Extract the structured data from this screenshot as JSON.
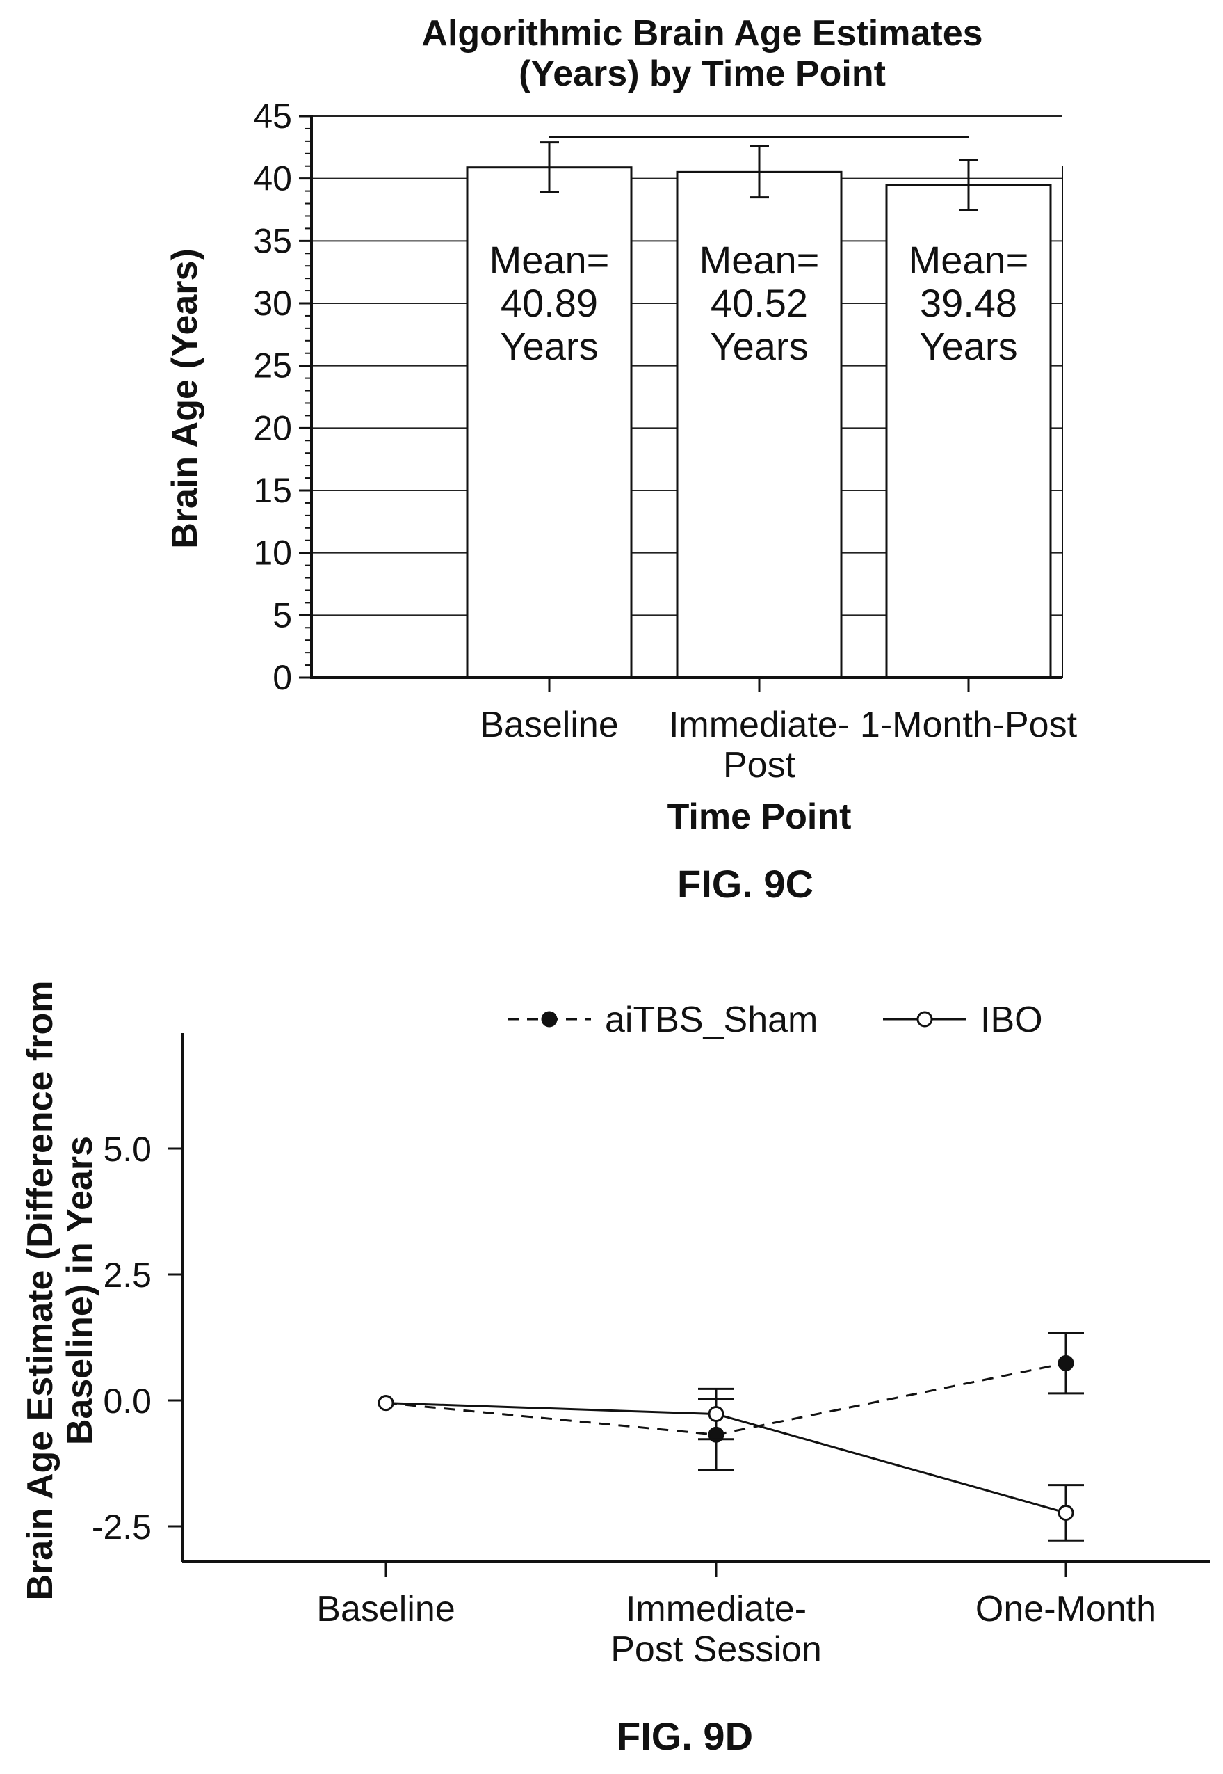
{
  "chart_data": [
    {
      "figure_label": "FIG. 9C",
      "type": "bar",
      "title_lines": [
        "Algorithmic Brain Age Estimates",
        "(Years) by Time Point"
      ],
      "xlabel": "Time Point",
      "ylabel": "Brain Age (Years)",
      "ylim": [
        0,
        45
      ],
      "yticks": [
        0,
        5,
        10,
        15,
        20,
        25,
        30,
        35,
        40,
        45
      ],
      "grid": true,
      "categories": [
        {
          "lines": [
            "Baseline"
          ]
        },
        {
          "lines": [
            "Immediate-",
            "Post"
          ]
        },
        {
          "lines": [
            "1-Month-Post"
          ]
        }
      ],
      "values": [
        40.89,
        40.52,
        39.48
      ],
      "error_bars": [
        [
          38.9,
          42.9
        ],
        [
          38.5,
          42.6
        ],
        [
          37.5,
          41.5
        ]
      ],
      "bar_labels": [
        [
          "Mean=",
          "40.89",
          "Years"
        ],
        [
          "Mean=",
          "40.52",
          "Years"
        ],
        [
          "Mean=",
          "39.48",
          "Years"
        ]
      ],
      "bracket": {
        "from": 0,
        "to": 2,
        "y": 43.3
      }
    },
    {
      "figure_label": "FIG. 9D",
      "type": "line",
      "ylabel_lines": [
        "Brain Age Estimate (Difference from",
        "Baseline) in Years"
      ],
      "xlabel": "",
      "ylim": [
        -3.2,
        7.0
      ],
      "yticks": [
        {
          "value": -2.5,
          "label": "-2.5"
        },
        {
          "value": 0.0,
          "label": "0.0"
        },
        {
          "value": 2.5,
          "label": "2.5"
        },
        {
          "value": 5.0,
          "label": "5.0"
        }
      ],
      "legend_placement": "top",
      "categories": [
        {
          "lines": [
            "Baseline"
          ]
        },
        {
          "lines": [
            "Immediate-",
            "Post Session"
          ]
        },
        {
          "lines": [
            "One-Month"
          ]
        }
      ],
      "series": [
        {
          "name": "aiTBS_Sham",
          "style": "dashed",
          "marker": "filled",
          "values": [
            -0.05,
            -0.68,
            0.74
          ],
          "error": [
            null,
            0.7,
            0.6
          ]
        },
        {
          "name": "IBO",
          "style": "solid",
          "marker": "open",
          "values": [
            -0.05,
            -0.27,
            -2.23
          ],
          "error": [
            null,
            0.5,
            0.55
          ]
        }
      ]
    }
  ]
}
